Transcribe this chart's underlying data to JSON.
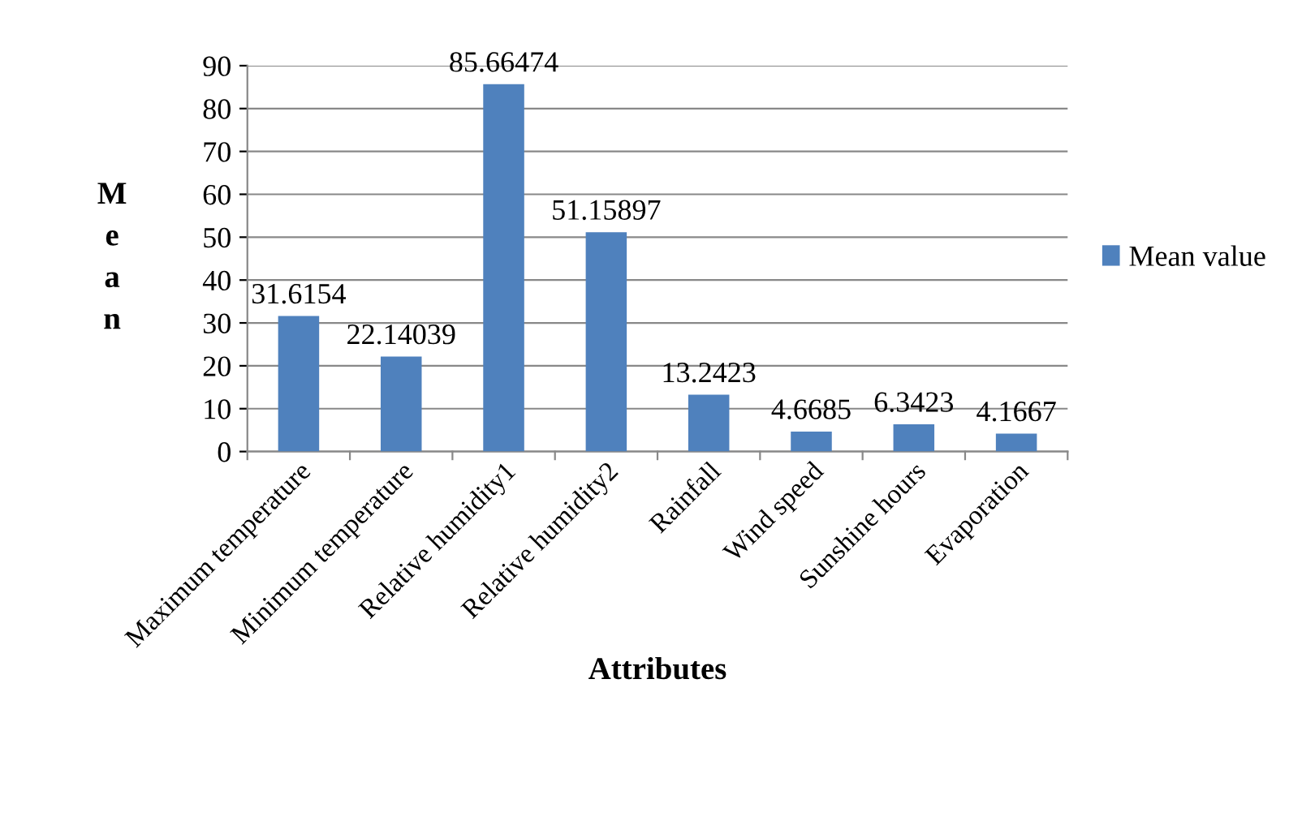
{
  "chart_data": {
    "type": "bar",
    "xlabel": "Attributes",
    "ylabel": "Mean",
    "categories": [
      "Maximum temperature",
      "Minimum temperature",
      "Relative humidity1",
      "Relative humidity2",
      "Rainfall",
      "Wind speed",
      "Sunshine hours",
      "Evaporation"
    ],
    "series": [
      {
        "name": "Mean value",
        "color": "#4f81bd",
        "values": [
          31.6154,
          22.14039,
          85.66474,
          51.15897,
          13.2423,
          4.6685,
          6.3423,
          4.1667
        ]
      }
    ],
    "ylim": [
      0,
      90
    ],
    "yticks": [
      0,
      10,
      20,
      30,
      40,
      50,
      60,
      70,
      80,
      90
    ],
    "grid": "y",
    "legend": "right",
    "data_labels": true
  }
}
